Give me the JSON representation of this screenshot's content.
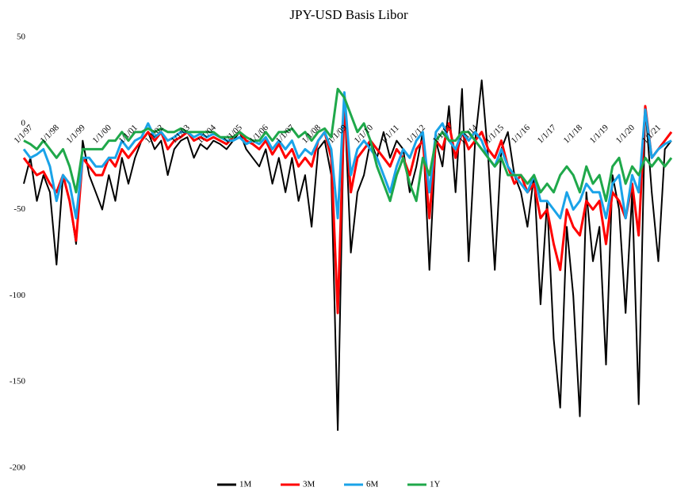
{
  "chart_data": {
    "type": "line",
    "title": "JPY-USD Basis Libor",
    "x": [
      "1/1/97",
      null,
      null,
      null,
      "1/1/98",
      null,
      null,
      null,
      "1/1/99",
      null,
      null,
      null,
      "1/1/00",
      null,
      null,
      null,
      "1/1/01",
      null,
      null,
      null,
      "1/1/02",
      null,
      null,
      null,
      "1/1/03",
      null,
      null,
      null,
      "1/1/04",
      null,
      null,
      null,
      "1/1/05",
      null,
      null,
      null,
      "1/1/06",
      null,
      null,
      null,
      "1/1/07",
      null,
      null,
      null,
      "1/1/08",
      null,
      null,
      null,
      "1/1/09",
      null,
      null,
      null,
      "1/1/10",
      null,
      null,
      null,
      "1/1/11",
      null,
      null,
      null,
      "1/1/12",
      null,
      null,
      null,
      "1/1/13",
      null,
      null,
      null,
      "1/1/14",
      null,
      null,
      null,
      "1/1/15",
      null,
      null,
      null,
      "1/1/16",
      null,
      null,
      null,
      "1/1/17",
      null,
      null,
      null,
      "1/1/18",
      null,
      null,
      null,
      "1/1/19",
      null,
      null,
      null,
      "1/1/20",
      null,
      null,
      null,
      "1/1/21",
      null,
      null,
      null
    ],
    "series": [
      {
        "name": "1M",
        "color": "#000000",
        "values": [
          -35,
          -20,
          -45,
          -30,
          -40,
          -82,
          -30,
          -45,
          -70,
          -10,
          -30,
          -40,
          -50,
          -30,
          -45,
          -20,
          -35,
          -20,
          -10,
          -5,
          -15,
          -10,
          -30,
          -15,
          -10,
          -8,
          -20,
          -12,
          -15,
          -10,
          -12,
          -15,
          -10,
          -5,
          -15,
          -20,
          -25,
          -15,
          -35,
          -20,
          -40,
          -20,
          -45,
          -30,
          -60,
          -15,
          -10,
          -30,
          -178,
          15,
          -75,
          -40,
          -30,
          -10,
          -20,
          -5,
          -20,
          -10,
          -15,
          -40,
          -25,
          -5,
          -85,
          -10,
          -25,
          10,
          -40,
          20,
          -80,
          -10,
          25,
          -20,
          -85,
          -15,
          -5,
          -30,
          -40,
          -60,
          -30,
          -105,
          -45,
          -125,
          -165,
          -60,
          -100,
          -170,
          -40,
          -80,
          -60,
          -140,
          -30,
          -50,
          -110,
          -40,
          -163,
          10,
          -40,
          -80,
          -15,
          -10
        ]
      },
      {
        "name": "3M",
        "color": "#ff0000",
        "values": [
          -20,
          -25,
          -30,
          -28,
          -35,
          -40,
          -30,
          -45,
          -68,
          -20,
          -25,
          -30,
          -30,
          -20,
          -25,
          -15,
          -20,
          -15,
          -10,
          -5,
          -10,
          -5,
          -15,
          -10,
          -8,
          -5,
          -10,
          -8,
          -10,
          -8,
          -10,
          -12,
          -8,
          -5,
          -10,
          -12,
          -15,
          -10,
          -18,
          -12,
          -20,
          -15,
          -25,
          -20,
          -25,
          -10,
          -5,
          -20,
          -110,
          10,
          -40,
          -20,
          -15,
          -10,
          -15,
          -20,
          -25,
          -15,
          -20,
          -30,
          -15,
          -10,
          -55,
          -10,
          -15,
          0,
          -20,
          -5,
          -15,
          -10,
          -5,
          -15,
          -20,
          -10,
          -25,
          -35,
          -30,
          -40,
          -35,
          -55,
          -50,
          -70,
          -85,
          -50,
          -60,
          -65,
          -45,
          -50,
          -45,
          -70,
          -40,
          -45,
          -55,
          -35,
          -65,
          10,
          -20,
          -15,
          -10,
          -5
        ]
      },
      {
        "name": "6M",
        "color": "#1aa3e8",
        "values": [
          -15,
          -20,
          -18,
          -15,
          -25,
          -45,
          -30,
          -35,
          -55,
          -20,
          -20,
          -25,
          -25,
          -20,
          -20,
          -10,
          -15,
          -10,
          -8,
          0,
          -8,
          -5,
          -10,
          -8,
          -5,
          -5,
          -8,
          -6,
          -8,
          -6,
          -8,
          -10,
          -10,
          -8,
          -12,
          -10,
          -12,
          -8,
          -15,
          -10,
          -15,
          -10,
          -20,
          -15,
          -18,
          -10,
          -5,
          -15,
          -55,
          18,
          -30,
          -15,
          -10,
          -15,
          -20,
          -30,
          -40,
          -25,
          -15,
          -20,
          -10,
          -5,
          -40,
          -5,
          0,
          -10,
          -15,
          -5,
          -10,
          -5,
          -10,
          -20,
          -25,
          -15,
          -25,
          -30,
          -35,
          -40,
          -30,
          -45,
          -45,
          -50,
          -55,
          -40,
          -50,
          -45,
          -35,
          -40,
          -40,
          -55,
          -35,
          -30,
          -55,
          -30,
          -40,
          8,
          -20,
          -15,
          -12,
          -10
        ]
      },
      {
        "name": "1Y",
        "color": "#1fa84a",
        "values": [
          -10,
          -12,
          -15,
          -10,
          -15,
          -20,
          -15,
          -25,
          -40,
          -15,
          -15,
          -15,
          -15,
          -10,
          -10,
          -5,
          -10,
          -5,
          -5,
          -3,
          -5,
          -3,
          -5,
          -5,
          -3,
          -5,
          -5,
          -5,
          -5,
          -5,
          -8,
          -8,
          -8,
          -5,
          -8,
          -10,
          -10,
          -5,
          -10,
          -5,
          -5,
          -3,
          -8,
          -5,
          -10,
          -5,
          -3,
          -8,
          20,
          15,
          5,
          -5,
          0,
          -10,
          -25,
          -35,
          -45,
          -30,
          -20,
          -35,
          -45,
          -20,
          -30,
          -10,
          -5,
          -10,
          -10,
          -5,
          -5,
          -10,
          -15,
          -20,
          -25,
          -20,
          -30,
          -30,
          -30,
          -35,
          -30,
          -40,
          -35,
          -40,
          -30,
          -25,
          -30,
          -40,
          -25,
          -35,
          -30,
          -45,
          -25,
          -20,
          -35,
          -25,
          -30,
          -20,
          -25,
          -20,
          -25,
          -20
        ]
      }
    ],
    "ylim": [
      -200,
      50
    ],
    "yticks": [
      -200,
      -150,
      -100,
      -50,
      0,
      50
    ]
  }
}
